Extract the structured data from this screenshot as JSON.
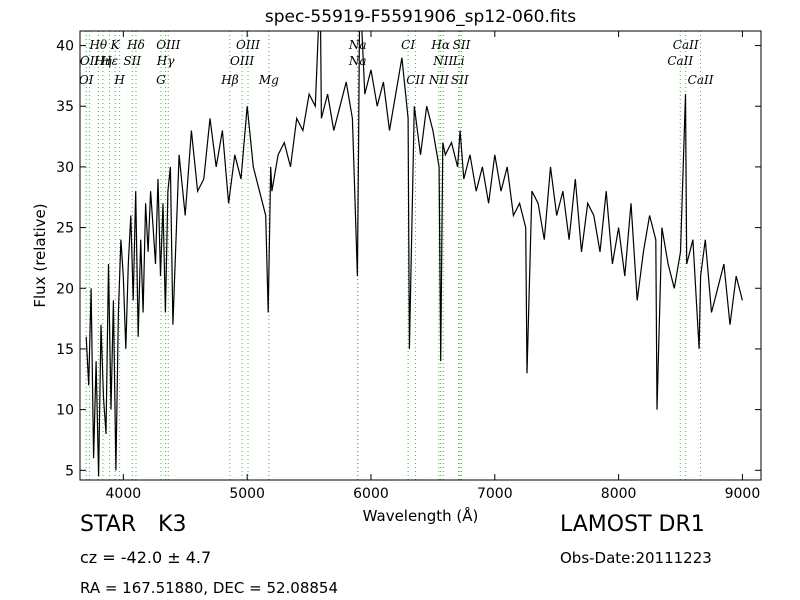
{
  "chart_data": {
    "type": "line",
    "title": "spec-55919-F5591906_sp12-060.fits",
    "xlabel": "Wavelength (Å)",
    "ylabel": "Flux (relative)",
    "xlim": [
      3650,
      9150
    ],
    "ylim": [
      4.2,
      41.2
    ],
    "xticks": [
      4000,
      5000,
      6000,
      7000,
      8000,
      9000
    ],
    "yticks": [
      5,
      10,
      15,
      20,
      25,
      30,
      35,
      40
    ],
    "grid": false,
    "series_color": "#000000",
    "line_marker_color": "#4daf4a",
    "spectrum": {
      "x": [
        3700,
        3720,
        3740,
        3760,
        3780,
        3800,
        3820,
        3840,
        3860,
        3880,
        3900,
        3920,
        3940,
        3960,
        3980,
        4000,
        4020,
        4040,
        4060,
        4080,
        4100,
        4120,
        4140,
        4160,
        4180,
        4200,
        4220,
        4240,
        4260,
        4280,
        4300,
        4320,
        4340,
        4360,
        4380,
        4400,
        4450,
        4500,
        4550,
        4600,
        4650,
        4700,
        4750,
        4800,
        4850,
        4900,
        4950,
        5000,
        5050,
        5100,
        5150,
        5170,
        5190,
        5200,
        5250,
        5300,
        5350,
        5400,
        5450,
        5500,
        5550,
        5590,
        5600,
        5650,
        5700,
        5750,
        5800,
        5850,
        5890,
        5900,
        5910,
        5950,
        6000,
        6050,
        6100,
        6150,
        6200,
        6250,
        6300,
        6310,
        6350,
        6400,
        6450,
        6500,
        6550,
        6563,
        6580,
        6600,
        6650,
        6700,
        6720,
        6750,
        6800,
        6850,
        6900,
        6950,
        7000,
        7050,
        7100,
        7150,
        7200,
        7250,
        7260,
        7300,
        7350,
        7400,
        7450,
        7500,
        7550,
        7600,
        7650,
        7700,
        7750,
        7800,
        7850,
        7900,
        7950,
        8000,
        8050,
        8100,
        8150,
        8200,
        8250,
        8300,
        8310,
        8350,
        8400,
        8450,
        8500,
        8540,
        8550,
        8600,
        8650,
        8662,
        8700,
        8750,
        8800,
        8850,
        8900,
        8950,
        9000
      ],
      "y": [
        16,
        12,
        20,
        6,
        14,
        4.5,
        17,
        11,
        8,
        22,
        10,
        19,
        5,
        18,
        24,
        21,
        15,
        22,
        26,
        19,
        28,
        16,
        24,
        18,
        27,
        23,
        28,
        25,
        22,
        29,
        21,
        27,
        18,
        28,
        30,
        17,
        31,
        26,
        33,
        28,
        29,
        34,
        30,
        33,
        27,
        31,
        29,
        35,
        30,
        28,
        26,
        18,
        30,
        28,
        31,
        32,
        30,
        34,
        33,
        36,
        35,
        45,
        34,
        36,
        33,
        35,
        37,
        34,
        21,
        32,
        45,
        36,
        38,
        35,
        37,
        33,
        36,
        39,
        34,
        15,
        35,
        31,
        35,
        33,
        30,
        14,
        32,
        31,
        32,
        30,
        33,
        29,
        31,
        28,
        30,
        27,
        31,
        28,
        30,
        26,
        27,
        25,
        13,
        28,
        27,
        24,
        30,
        26,
        28,
        24,
        29,
        23,
        27,
        26,
        23,
        28,
        22,
        25,
        21,
        27,
        19,
        23,
        26,
        24,
        10,
        25,
        22,
        20,
        23,
        36,
        22,
        24,
        15,
        21,
        24,
        18,
        20,
        22,
        17,
        21,
        19
      ]
    },
    "lines_upper": [
      {
        "label": "Hθ",
        "x": 3798
      },
      {
        "label": "K",
        "x": 3934
      },
      {
        "label": "Hδ",
        "x": 4102
      },
      {
        "label": "OIII",
        "x": 4363
      },
      {
        "label": "OIII",
        "x": 5007
      },
      {
        "label": "Na",
        "x": 5893
      },
      {
        "label": "CI",
        "x": 6300
      },
      {
        "label": "Hα",
        "x": 6563
      },
      {
        "label": "SII",
        "x": 6731
      },
      {
        "label": "CaII",
        "x": 8542
      }
    ],
    "lines_lower": [
      {
        "label": "OII",
        "x": 3727
      },
      {
        "label": "Hη",
        "x": 3835
      },
      {
        "label": "Hε",
        "x": 3889
      },
      {
        "label": "SII",
        "x": 4072
      },
      {
        "label": "Hγ",
        "x": 4341
      },
      {
        "label": "OIII",
        "x": 4959
      },
      {
        "label": "Na",
        "x": 5893
      },
      {
        "label": "NII",
        "x": 6584
      },
      {
        "label": "Li",
        "x": 6708
      },
      {
        "label": "CaII",
        "x": 8498
      }
    ],
    "lines_third": [
      {
        "label": "OI",
        "x": 3700
      },
      {
        "label": "H",
        "x": 3970
      },
      {
        "label": "G",
        "x": 4304
      },
      {
        "label": "Hβ",
        "x": 4861
      },
      {
        "label": "Mg",
        "x": 5175
      },
      {
        "label": "CII",
        "x": 6360
      },
      {
        "label": "NII",
        "x": 6548
      },
      {
        "label": "SII",
        "x": 6717
      },
      {
        "label": "CaII",
        "x": 8662
      }
    ]
  },
  "info": {
    "object_class": "STAR",
    "subclass": "K3",
    "cz_line": "cz = -42.0 ± 4.7",
    "radec_line": "RA = 167.51880, DEC = 52.08854",
    "survey": "LAMOST DR1",
    "obs_date": "Obs-Date:20111223"
  }
}
